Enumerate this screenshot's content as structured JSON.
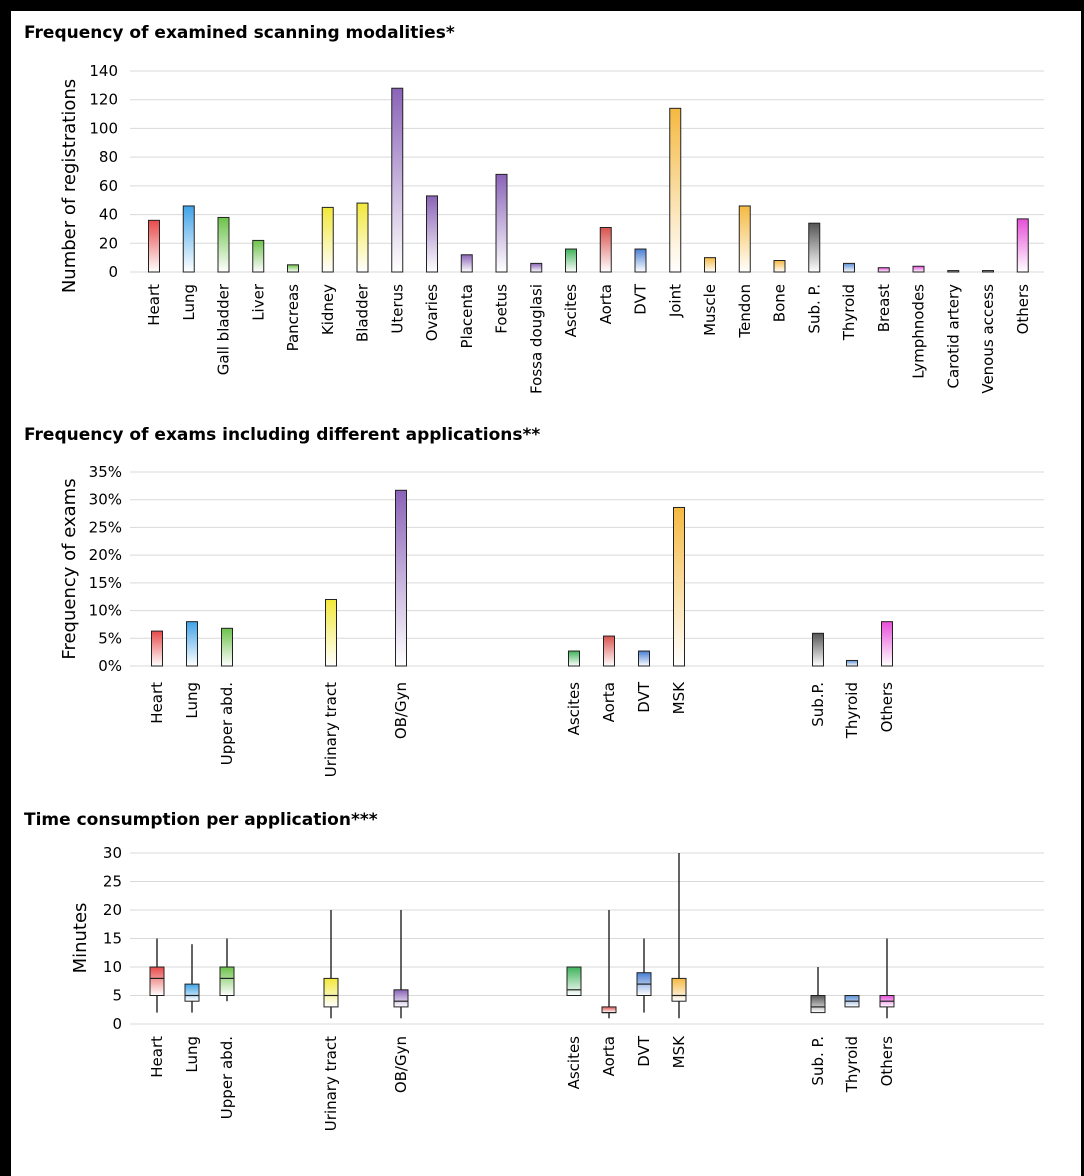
{
  "chart_data": [
    {
      "type": "bar",
      "title": "Frequency of examined scanning modalities*",
      "ylabel": "Number of registrations",
      "ylim": [
        0,
        140
      ],
      "yticks": [
        "0",
        "20",
        "40",
        "60",
        "80",
        "100",
        "120",
        "140"
      ],
      "categories": [
        "Heart",
        "Lung",
        "Gall bladder",
        "Liver",
        "Pancreas",
        "Kidney",
        "Bladder",
        "Uterus",
        "Ovaries",
        "Placenta",
        "Foetus",
        "Fossa douglasi",
        "Ascites",
        "Aorta",
        "DVT",
        "Joint",
        "Muscle",
        "Tendon",
        "Bone",
        "Sub. P.",
        "Thyroid",
        "Breast",
        "Lymphnodes",
        "Carotid artery",
        "Venous access",
        "Others"
      ],
      "values": [
        36,
        46,
        38,
        22,
        5,
        45,
        48,
        128,
        53,
        12,
        68,
        6,
        16,
        31,
        16,
        114,
        10,
        46,
        8,
        34,
        6,
        3,
        4,
        1,
        1,
        37
      ],
      "colors": [
        "#e84a4a",
        "#3fa3e8",
        "#6cc24a",
        "#6cc24a",
        "#6cc24a",
        "#f2e83a",
        "#f2e83a",
        "#8a63b8",
        "#8a63b8",
        "#8a63b8",
        "#8a63b8",
        "#8a63b8",
        "#3fb35a",
        "#d9534f",
        "#4a7fd4",
        "#f5b942",
        "#f5b942",
        "#f5b942",
        "#f5b942",
        "#555555",
        "#5b8fd6",
        "#e64fd9",
        "#e64fd9",
        "#555555",
        "#555555",
        "#e64fd9"
      ],
      "grid": true
    },
    {
      "type": "bar",
      "title": "Frequency of exams including different applications**",
      "ylabel": "Frequency of exams",
      "ylim": [
        0,
        35
      ],
      "yticks": [
        "0%",
        "5%",
        "10%",
        "15%",
        "20%",
        "25%",
        "30%",
        "35%"
      ],
      "categories": [
        "Heart",
        "Lung",
        "Upper abd.",
        "Urinary tract",
        "OB/Gyn",
        "Ascites",
        "Aorta",
        "DVT",
        "MSK",
        "Sub.P.",
        "Thyroid",
        "Others"
      ],
      "values": [
        6.3,
        8.0,
        6.8,
        12.0,
        31.7,
        2.7,
        5.4,
        2.7,
        28.6,
        5.9,
        1.0,
        8.0
      ],
      "colors": [
        "#e84a4a",
        "#3fa3e8",
        "#6cc24a",
        "#f2e83a",
        "#8a63b8",
        "#3fb35a",
        "#d9534f",
        "#4a7fd4",
        "#f5b942",
        "#555555",
        "#5b8fd6",
        "#e64fd9"
      ],
      "grid": true
    },
    {
      "type": "box",
      "title": "Time consumption per application***",
      "ylabel": "Minutes",
      "ylim": [
        0,
        30
      ],
      "yticks": [
        "0",
        "5",
        "10",
        "15",
        "20",
        "25",
        "30"
      ],
      "categories": [
        "Heart",
        "Lung",
        "Upper abd.",
        "Urinary tract",
        "OB/Gyn",
        "Ascites",
        "Aorta",
        "DVT",
        "MSK",
        "Sub. P.",
        "Thyroid",
        "Others"
      ],
      "boxes": [
        {
          "min": 2,
          "q1": 5,
          "median": 8,
          "q3": 10,
          "max": 15
        },
        {
          "min": 2,
          "q1": 4,
          "median": 5,
          "q3": 7,
          "max": 14
        },
        {
          "min": 4,
          "q1": 5,
          "median": 8,
          "q3": 10,
          "max": 15
        },
        {
          "min": 1,
          "q1": 3,
          "median": 5,
          "q3": 8,
          "max": 20
        },
        {
          "min": 1,
          "q1": 3,
          "median": 4,
          "q3": 6,
          "max": 20
        },
        {
          "min": 5,
          "q1": 5,
          "median": 6,
          "q3": 10,
          "max": 10
        },
        {
          "min": 1,
          "q1": 2,
          "median": 2,
          "q3": 3,
          "max": 20
        },
        {
          "min": 2,
          "q1": 5,
          "median": 7,
          "q3": 9,
          "max": 15
        },
        {
          "min": 1,
          "q1": 4,
          "median": 5,
          "q3": 8,
          "max": 30
        },
        {
          "min": 2,
          "q1": 2,
          "median": 3,
          "q3": 5,
          "max": 10
        },
        {
          "min": 3,
          "q1": 3,
          "median": 4,
          "q3": 5,
          "max": 5
        },
        {
          "min": 1,
          "q1": 3,
          "median": 4,
          "q3": 5,
          "max": 15
        }
      ],
      "colors": [
        "#e84a4a",
        "#3fa3e8",
        "#6cc24a",
        "#f2e83a",
        "#8a63b8",
        "#3fb35a",
        "#d9534f",
        "#4a7fd4",
        "#f5b942",
        "#555555",
        "#5b8fd6",
        "#e64fd9"
      ],
      "grid": true
    }
  ]
}
